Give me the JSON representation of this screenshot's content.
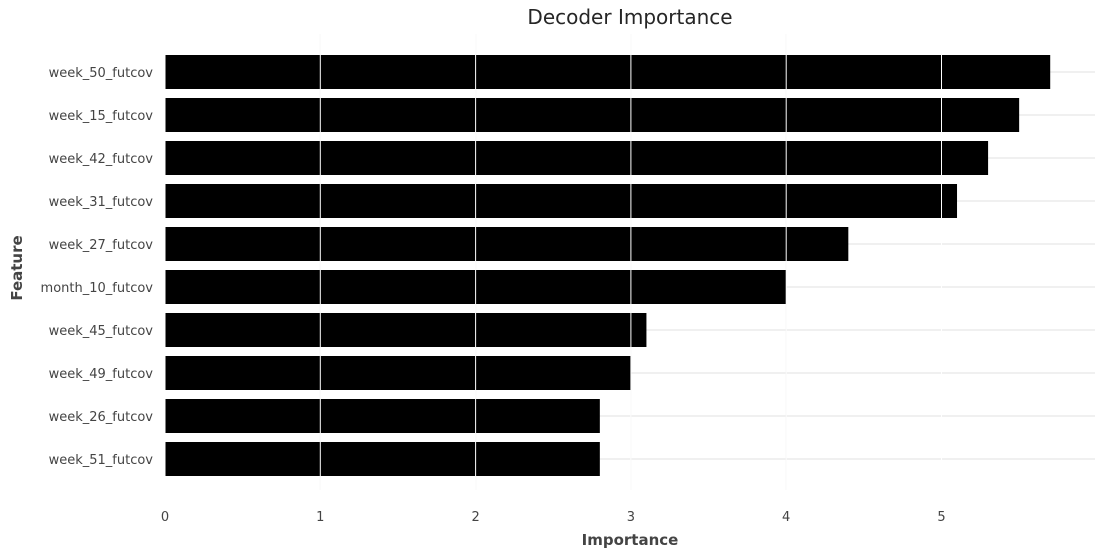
{
  "chart_data": {
    "type": "bar",
    "orientation": "horizontal",
    "title": "Decoder Importance",
    "xlabel": "Importance",
    "ylabel": "Feature",
    "categories": [
      "week_50_futcov",
      "week_15_futcov",
      "week_42_futcov",
      "week_31_futcov",
      "week_27_futcov",
      "month_10_futcov",
      "week_45_futcov",
      "week_49_futcov",
      "week_26_futcov",
      "week_51_futcov"
    ],
    "values": [
      5.7,
      5.5,
      5.3,
      5.1,
      4.4,
      4.0,
      3.1,
      3.0,
      2.8,
      2.8
    ],
    "xticks": [
      "0",
      "1",
      "2",
      "3",
      "4",
      "5"
    ],
    "xlim": [
      0,
      6.0
    ],
    "grid": true,
    "bar_color": "#000000"
  }
}
